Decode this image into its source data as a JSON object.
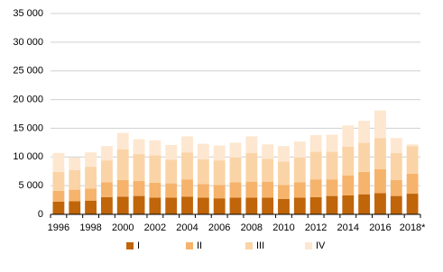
{
  "chart_data": {
    "type": "stacked-bar",
    "categories": [
      "1996",
      null,
      "1998",
      null,
      "2000",
      null,
      "2002",
      null,
      "2004",
      null,
      "2006",
      null,
      "2008",
      null,
      "2010",
      null,
      "2012",
      null,
      "2014",
      null,
      "2016",
      null,
      "2018*"
    ],
    "series": [
      {
        "name": "I",
        "color": "#c0650a",
        "values": [
          2200,
          2300,
          2400,
          3000,
          3100,
          3200,
          2900,
          2900,
          3100,
          2900,
          2800,
          2900,
          2900,
          2900,
          2700,
          2900,
          3000,
          3200,
          3300,
          3500,
          3700,
          3200,
          3600
        ]
      },
      {
        "name": "II",
        "color": "#f6b36c",
        "values": [
          1900,
          2000,
          2100,
          2600,
          2900,
          2600,
          2600,
          2500,
          3000,
          2400,
          2300,
          2700,
          2800,
          2800,
          2400,
          2700,
          3100,
          2900,
          3500,
          3900,
          4200,
          2800,
          3500
        ]
      },
      {
        "name": "III",
        "color": "#fad4a6",
        "values": [
          3300,
          3400,
          3800,
          3800,
          5300,
          4700,
          4800,
          4100,
          4700,
          4300,
          4300,
          4300,
          5000,
          4000,
          4100,
          4300,
          4800,
          4800,
          5000,
          5100,
          5400,
          4700,
          4800
        ]
      },
      {
        "name": "IV",
        "color": "#fde7d0",
        "values": [
          3300,
          2200,
          2500,
          2500,
          2900,
          2600,
          2600,
          2600,
          2800,
          2700,
          2600,
          2600,
          2900,
          2500,
          2700,
          2800,
          2900,
          3000,
          3700,
          3800,
          4800,
          2600,
          300
        ]
      }
    ],
    "ylim": [
      0,
      35000
    ],
    "yticks": [
      0,
      {
        "value": 5000,
        "label": "5 000"
      },
      {
        "value": 10000,
        "label": "10 000"
      },
      {
        "value": 15000,
        "label": "15 000"
      },
      {
        "value": 20000,
        "label": "20 000"
      },
      {
        "value": 25000,
        "label": "25 000"
      },
      {
        "value": 30000,
        "label": "30 000"
      },
      {
        "value": 35000,
        "label": "35 000"
      }
    ],
    "grid": true
  }
}
